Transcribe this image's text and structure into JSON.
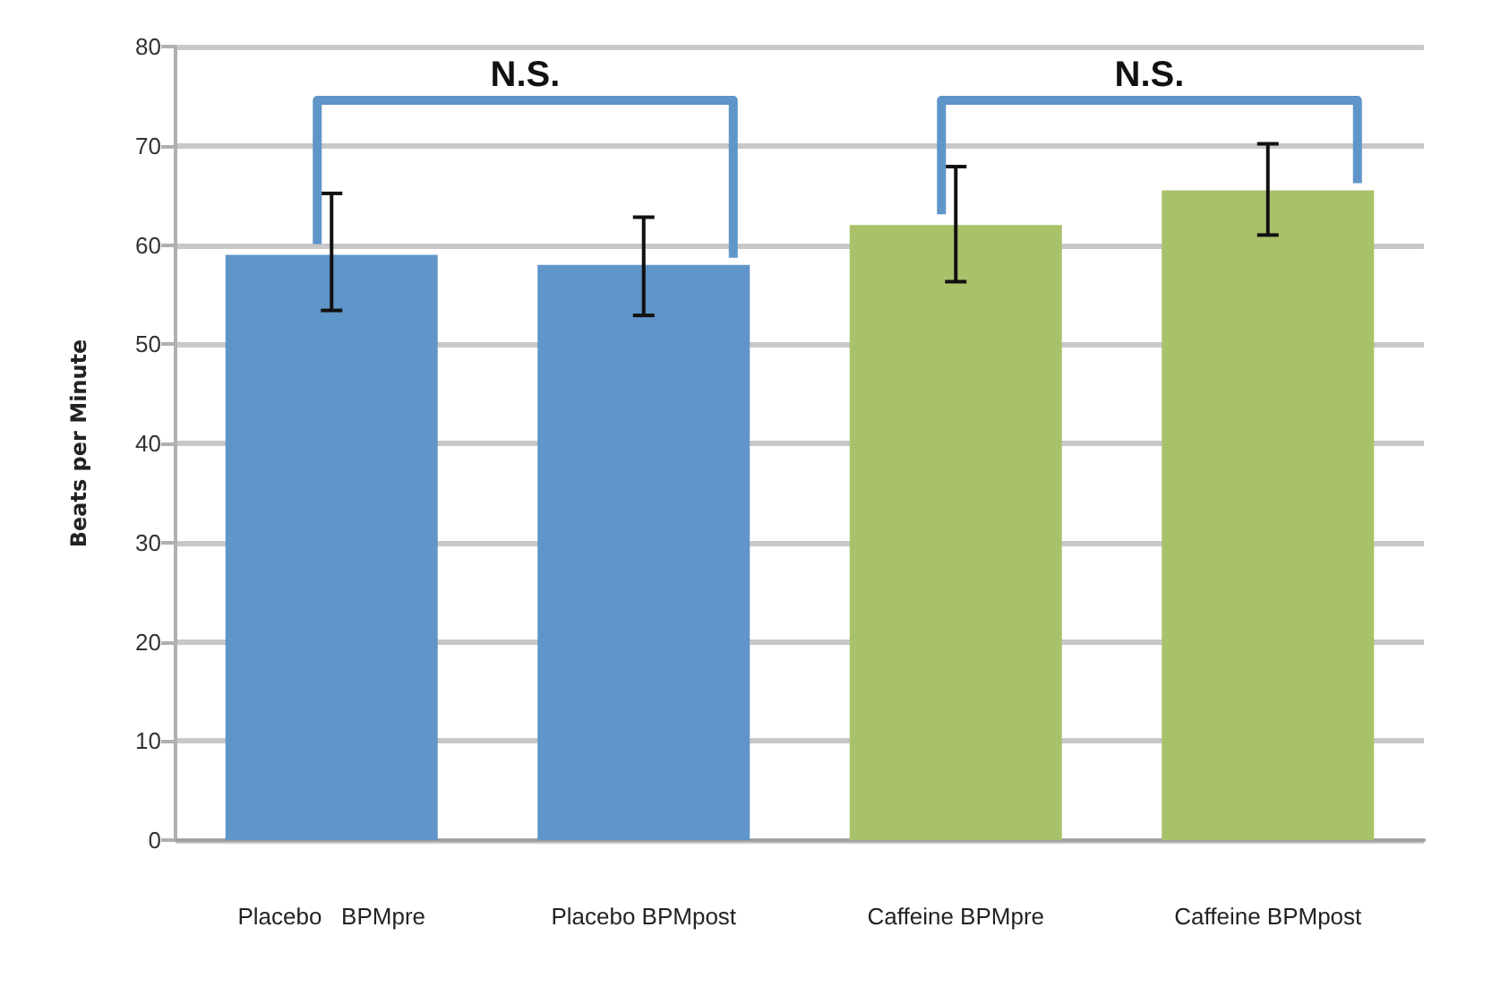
{
  "chart_data": {
    "type": "bar",
    "ylabel": "Beats per Minute",
    "categories": [
      "Placebo   BPMpre",
      "Placebo BPMpost",
      "Caffeine BPMpre",
      "Caffeine BPMpost"
    ],
    "values": [
      59,
      58,
      62,
      65.5
    ],
    "colors": [
      "#5f95c8",
      "#5f95c8",
      "#a9c26a",
      "#a9c26a"
    ],
    "errors": [
      [
        53.4,
        65.2
      ],
      [
        52.9,
        62.8
      ],
      [
        56.3,
        67.9
      ],
      [
        61,
        70.2
      ]
    ],
    "ylim": [
      0,
      80
    ],
    "yticks": [
      0,
      10,
      20,
      30,
      40,
      50,
      60,
      70,
      80
    ],
    "grid": "y",
    "annotations": [
      "N.S.",
      "N.S."
    ]
  }
}
